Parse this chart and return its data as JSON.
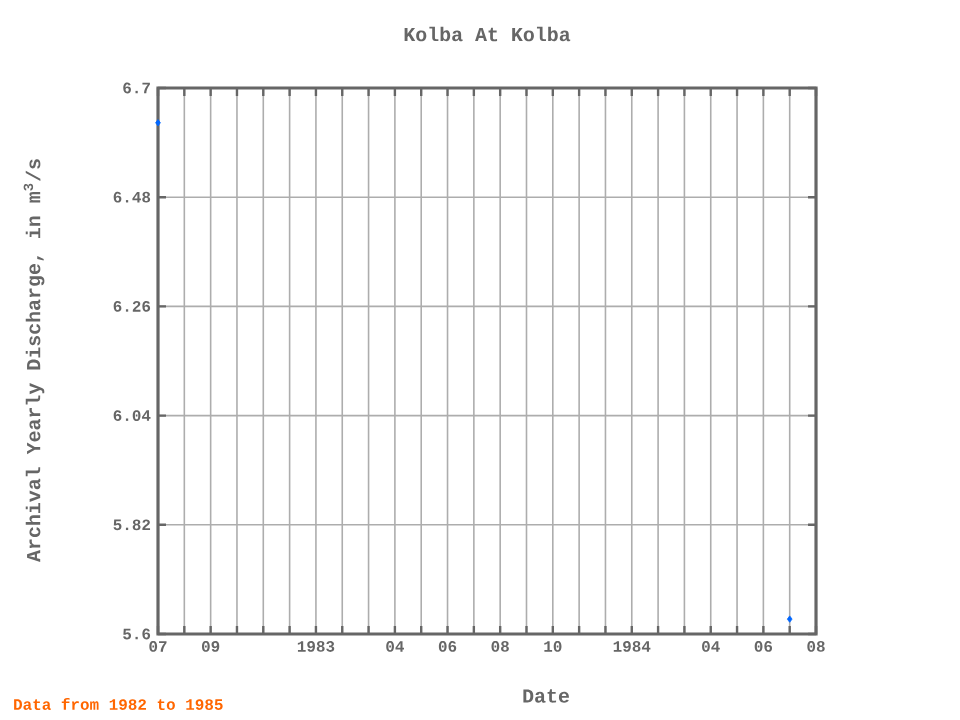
{
  "chart_data": {
    "type": "scatter",
    "title": "Kolba At Kolba",
    "xlabel": "Date",
    "ylabel": "Archival Yearly Discharge, in m$^{3}$/s",
    "annotations": [
      "Data from 1982 to 1985"
    ],
    "x": [
      "1982-07",
      "1984-07"
    ],
    "series": [
      {
        "color": "#0066ff",
        "values": [
          6.63,
          5.63
        ]
      }
    ],
    "marker": "diamond",
    "grid": true,
    "xlim": [
      "1982-07",
      "1984-08"
    ],
    "xticks": [
      {
        "value": "1982-07",
        "label": "07"
      },
      {
        "value": "1982-08",
        "label": null
      },
      {
        "value": "1982-09",
        "label": "09"
      },
      {
        "value": "1982-10",
        "label": null
      },
      {
        "value": "1982-11",
        "label": null
      },
      {
        "value": "1982-12",
        "label": null
      },
      {
        "value": "1983-01",
        "label": "1983"
      },
      {
        "value": "1983-02",
        "label": null
      },
      {
        "value": "1983-03",
        "label": null
      },
      {
        "value": "1983-04",
        "label": "04"
      },
      {
        "value": "1983-05",
        "label": null
      },
      {
        "value": "1983-06",
        "label": "06"
      },
      {
        "value": "1983-07",
        "label": null
      },
      {
        "value": "1983-08",
        "label": "08"
      },
      {
        "value": "1983-09",
        "label": null
      },
      {
        "value": "1983-10",
        "label": "10"
      },
      {
        "value": "1983-11",
        "label": null
      },
      {
        "value": "1983-12",
        "label": null
      },
      {
        "value": "1984-01",
        "label": "1984"
      },
      {
        "value": "1984-02",
        "label": null
      },
      {
        "value": "1984-03",
        "label": null
      },
      {
        "value": "1984-04",
        "label": "04"
      },
      {
        "value": "1984-05",
        "label": null
      },
      {
        "value": "1984-06",
        "label": "06"
      },
      {
        "value": "1984-07",
        "label": null
      },
      {
        "value": "1984-08",
        "label": "08"
      }
    ],
    "ylim": [
      5.6,
      6.7
    ],
    "yticks": [
      5.6,
      5.82,
      6.04,
      6.26,
      6.48,
      6.7
    ]
  }
}
